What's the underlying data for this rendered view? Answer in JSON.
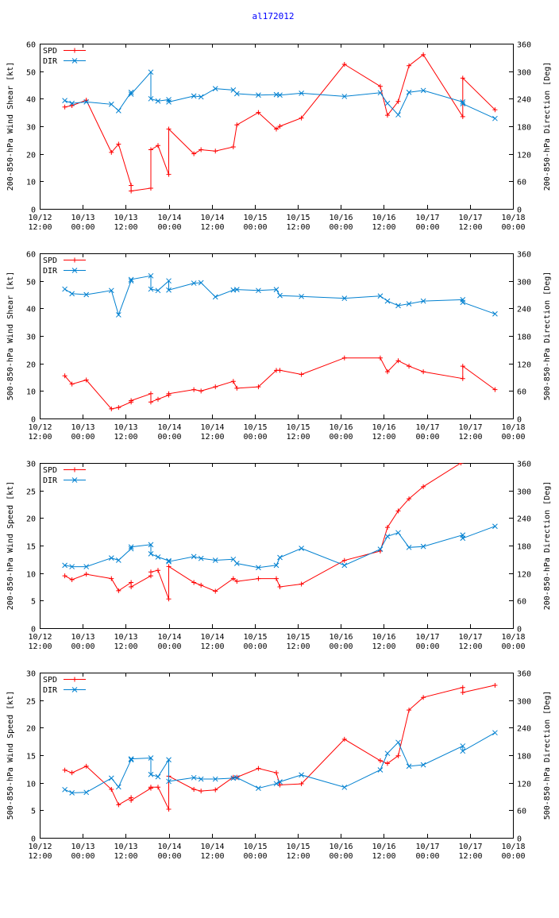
{
  "page_title": "al172012",
  "colors": {
    "spd": "#ff0000",
    "dir": "#0080d0",
    "title": "#0000ff",
    "axis": "#000000"
  },
  "legend": {
    "spd": "SPD",
    "dir": "DIR"
  },
  "x_ticks": [
    {
      "t": 0,
      "date": "10/12",
      "time": "12:00"
    },
    {
      "t": 12,
      "date": "10/13",
      "time": "00:00"
    },
    {
      "t": 24,
      "date": "10/13",
      "time": "12:00"
    },
    {
      "t": 36,
      "date": "10/14",
      "time": "00:00"
    },
    {
      "t": 48,
      "date": "10/14",
      "time": "12:00"
    },
    {
      "t": 60,
      "date": "10/15",
      "time": "00:00"
    },
    {
      "t": 72,
      "date": "10/15",
      "time": "12:00"
    },
    {
      "t": 84,
      "date": "10/16",
      "time": "00:00"
    },
    {
      "t": 96,
      "date": "10/16",
      "time": "12:00"
    },
    {
      "t": 108,
      "date": "10/17",
      "time": "00:00"
    },
    {
      "t": 120,
      "date": "10/17",
      "time": "12:00"
    },
    {
      "t": 132,
      "date": "10/18",
      "time": "00:00"
    }
  ],
  "chart_data": [
    {
      "type": "line",
      "ylabel_left": "200-850-hPa Wind Shear [kt]",
      "ylabel_right": "200-850-hPa Direction [Deg]",
      "xlim": [
        0,
        132
      ],
      "ylim": [
        0,
        60
      ],
      "y2lim": [
        0,
        360
      ],
      "yticks": [
        0,
        10,
        20,
        30,
        40,
        50,
        60
      ],
      "y2ticks": [
        0,
        60,
        120,
        180,
        240,
        300,
        360
      ],
      "series": [
        {
          "name": "SPD",
          "axis": "left",
          "x": [
            7,
            9,
            13,
            20,
            22,
            25.5,
            25.5,
            31,
            31,
            33,
            36,
            36,
            43,
            45,
            49,
            54,
            55,
            61,
            66,
            67,
            73,
            85,
            95,
            97,
            100,
            103,
            107,
            118,
            118,
            127
          ],
          "y": [
            37,
            37.5,
            39.5,
            20.5,
            23.5,
            8.5,
            6.5,
            7.5,
            21.5,
            23,
            12.5,
            29,
            20,
            21.5,
            21,
            22.5,
            30.5,
            35,
            29,
            30,
            33,
            52.5,
            44.5,
            34,
            39,
            52,
            56,
            33.5,
            47.5,
            36
          ]
        },
        {
          "name": "DIR",
          "axis": "right",
          "x": [
            7,
            9,
            13,
            20,
            22,
            25.5,
            25.5,
            31,
            31,
            33,
            36,
            36,
            43,
            45,
            49,
            54,
            55,
            61,
            66,
            67,
            73,
            85,
            95,
            97,
            100,
            103,
            107,
            118,
            118,
            127
          ],
          "y": [
            236,
            230,
            233,
            228,
            214,
            254,
            250,
            298,
            240,
            235,
            238,
            233,
            246,
            244,
            262,
            259,
            251,
            248,
            249,
            248,
            252,
            245,
            253,
            230,
            205,
            254,
            258,
            233,
            229,
            197
          ]
        }
      ]
    },
    {
      "type": "line",
      "ylabel_left": "500-850-hPa Wind Shear [kt]",
      "ylabel_right": "500-850-hPa Direction [Deg]",
      "xlim": [
        0,
        132
      ],
      "ylim": [
        0,
        60
      ],
      "y2lim": [
        0,
        360
      ],
      "yticks": [
        0,
        10,
        20,
        30,
        40,
        50,
        60
      ],
      "y2ticks": [
        0,
        60,
        120,
        180,
        240,
        300,
        360
      ],
      "series": [
        {
          "name": "SPD",
          "axis": "left",
          "x": [
            7,
            9,
            13,
            20,
            22,
            25.5,
            25.5,
            31,
            31,
            33,
            36,
            36,
            43,
            45,
            49,
            54,
            55,
            61,
            66,
            67,
            73,
            85,
            95,
            97,
            100,
            103,
            107,
            118,
            118,
            127
          ],
          "y": [
            15.5,
            12.5,
            14,
            3.5,
            4,
            6,
            6.5,
            9,
            6,
            7,
            8.5,
            9,
            10.5,
            10,
            11.5,
            13.5,
            11,
            11.5,
            17.5,
            17.5,
            16,
            22,
            22,
            17,
            21,
            19,
            17,
            14.5,
            19,
            10.5
          ]
        },
        {
          "name": "DIR",
          "axis": "right",
          "x": [
            7,
            9,
            13,
            20,
            22,
            25.5,
            25.5,
            31,
            31,
            33,
            36,
            36,
            43,
            45,
            49,
            54,
            55,
            61,
            66,
            67,
            73,
            85,
            95,
            97,
            100,
            103,
            107,
            118,
            118,
            127
          ],
          "y": [
            282,
            272,
            270,
            279,
            226,
            300,
            303,
            311,
            282,
            279,
            300,
            280,
            295,
            296,
            265,
            280,
            281,
            279,
            281,
            268,
            266,
            262,
            267,
            256,
            246,
            250,
            256,
            259,
            253,
            228
          ]
        }
      ]
    },
    {
      "type": "line",
      "ylabel_left": "200-850-hPa Wind Speed [kt]",
      "ylabel_right": "200-850-hPa Direction [Deg]",
      "xlim": [
        0,
        132
      ],
      "ylim": [
        0,
        30
      ],
      "y2lim": [
        0,
        360
      ],
      "yticks": [
        0,
        5,
        10,
        15,
        20,
        25,
        30
      ],
      "y2ticks": [
        0,
        60,
        120,
        180,
        240,
        300,
        360
      ],
      "series": [
        {
          "name": "SPD",
          "axis": "left",
          "x": [
            7,
            9,
            13,
            20,
            22,
            25.5,
            25.5,
            31,
            31,
            33,
            36,
            36,
            43,
            45,
            49,
            54,
            55,
            61,
            66,
            67,
            73,
            85,
            95,
            97,
            100,
            103,
            107,
            117.5
          ],
          "y": [
            9.5,
            8.8,
            9.8,
            9,
            6.8,
            8.3,
            7.5,
            9.5,
            10.2,
            10.5,
            5.3,
            11.2,
            8.3,
            7.8,
            6.7,
            9,
            8.5,
            9,
            9,
            7.5,
            8,
            12.3,
            14,
            18.3,
            21.3,
            23.5,
            25.7,
            30
          ]
        },
        {
          "name": "DIR",
          "axis": "right",
          "x": [
            7,
            9,
            13,
            20,
            22,
            25.5,
            25.5,
            31,
            31,
            33,
            36,
            36,
            43,
            45,
            49,
            54,
            55,
            61,
            66,
            67,
            73,
            85,
            95,
            97,
            100,
            103,
            107,
            118,
            118,
            127
          ],
          "y": [
            137,
            134,
            134,
            153,
            148,
            173,
            177,
            182,
            162,
            155,
            147,
            145,
            156,
            152,
            148,
            150,
            141,
            132,
            137,
            154,
            174,
            137,
            172,
            200,
            208,
            176,
            178,
            203,
            196,
            222
          ]
        }
      ]
    },
    {
      "type": "line",
      "ylabel_left": "500-850-hPa Wind Speed [kt]",
      "ylabel_right": "500-850-hPa Direction [Deg]",
      "xlim": [
        0,
        132
      ],
      "ylim": [
        0,
        30
      ],
      "y2lim": [
        0,
        360
      ],
      "yticks": [
        0,
        5,
        10,
        15,
        20,
        25,
        30
      ],
      "y2ticks": [
        0,
        60,
        120,
        180,
        240,
        300,
        360
      ],
      "series": [
        {
          "name": "SPD",
          "axis": "left",
          "x": [
            7,
            9,
            13,
            20,
            22,
            25.5,
            25.5,
            31,
            31,
            33,
            36,
            36,
            43,
            45,
            49,
            54,
            55,
            61,
            66,
            67,
            73,
            85,
            95,
            97,
            100,
            103,
            107,
            118,
            118,
            127
          ],
          "y": [
            12.3,
            11.8,
            13,
            8.8,
            6,
            7.3,
            6.8,
            9,
            9.2,
            9.2,
            5.2,
            11.2,
            8.8,
            8.5,
            8.7,
            11,
            11,
            12.6,
            11.8,
            9.6,
            9.8,
            17.9,
            14,
            13.5,
            14.9,
            23.2,
            25.5,
            27.3,
            26.4,
            27.7
          ]
        },
        {
          "name": "DIR",
          "axis": "right",
          "x": [
            7,
            9,
            13,
            20,
            22,
            25.5,
            25.5,
            31,
            31,
            33,
            36,
            36,
            43,
            45,
            49,
            54,
            55,
            61,
            66,
            67,
            73,
            85,
            95,
            97,
            100,
            103,
            107,
            118,
            118,
            127
          ],
          "y": [
            105,
            98,
            99,
            130,
            111,
            170,
            172,
            174,
            138,
            133,
            170,
            123,
            131,
            128,
            128,
            130,
            131,
            108,
            118,
            122,
            137,
            110,
            148,
            184,
            208,
            156,
            159,
            200,
            189,
            229
          ]
        }
      ]
    }
  ]
}
